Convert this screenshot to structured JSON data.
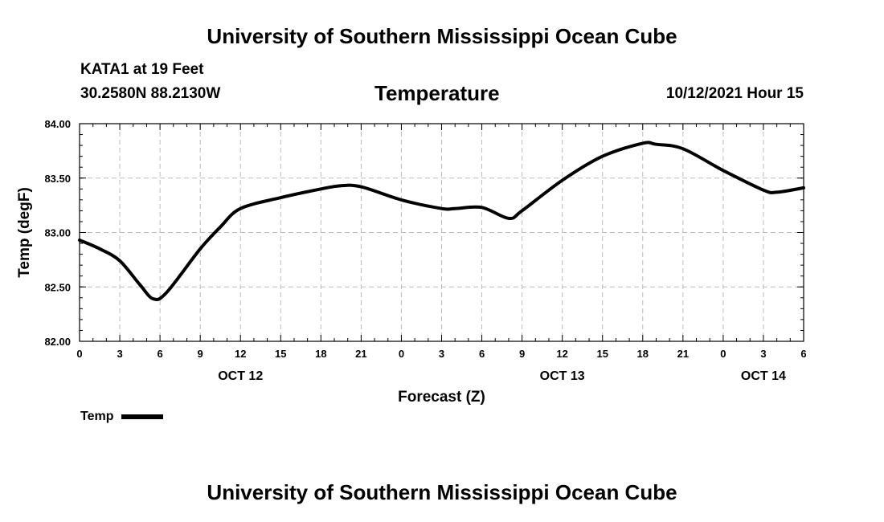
{
  "header": {
    "title": "University of Southern Mississippi Ocean Cube",
    "station": "KATA1 at 19 Feet",
    "coordinates": "30.2580N  88.2130W",
    "variable": "Temperature",
    "datetime": "10/12/2021 Hour 15"
  },
  "footer": {
    "title": "University of Southern Mississippi Ocean Cube"
  },
  "legend": {
    "label": "Temp"
  },
  "chart_data": {
    "type": "line",
    "title": "Temperature",
    "xlabel": "Forecast (Z)",
    "ylabel": "Temp (degF)",
    "ylim": [
      82.0,
      84.0
    ],
    "xlim": [
      0,
      54
    ],
    "grid": true,
    "legend_position": "bottom-left",
    "y_ticks": [
      "82.00",
      "82.50",
      "83.00",
      "83.50",
      "84.00"
    ],
    "x_ticks": [
      "0",
      "3",
      "6",
      "9",
      "12",
      "15",
      "18",
      "21",
      "0",
      "3",
      "6",
      "9",
      "12",
      "15",
      "18",
      "21",
      "0",
      "3",
      "6"
    ],
    "date_labels": [
      {
        "label": "OCT 12",
        "hour": 12
      },
      {
        "label": "OCT 13",
        "hour": 36
      },
      {
        "label": "OCT 14",
        "hour": 51
      }
    ],
    "series": [
      {
        "name": "Temp",
        "color": "#000000",
        "x": [
          0,
          1.5,
          3,
          4.5,
          5.5,
          6.5,
          9,
          10.5,
          12,
          15,
          18,
          19.5,
          21,
          24,
          27,
          28,
          30,
          32,
          33,
          36,
          39,
          42,
          43,
          45,
          48,
          51,
          52,
          54
        ],
        "values": [
          82.93,
          82.85,
          82.74,
          82.52,
          82.39,
          82.45,
          82.85,
          83.05,
          83.22,
          83.32,
          83.4,
          83.43,
          83.42,
          83.3,
          83.22,
          83.22,
          83.23,
          83.13,
          83.2,
          83.48,
          83.7,
          83.82,
          83.81,
          83.77,
          83.57,
          83.39,
          83.37,
          83.41
        ]
      }
    ]
  }
}
